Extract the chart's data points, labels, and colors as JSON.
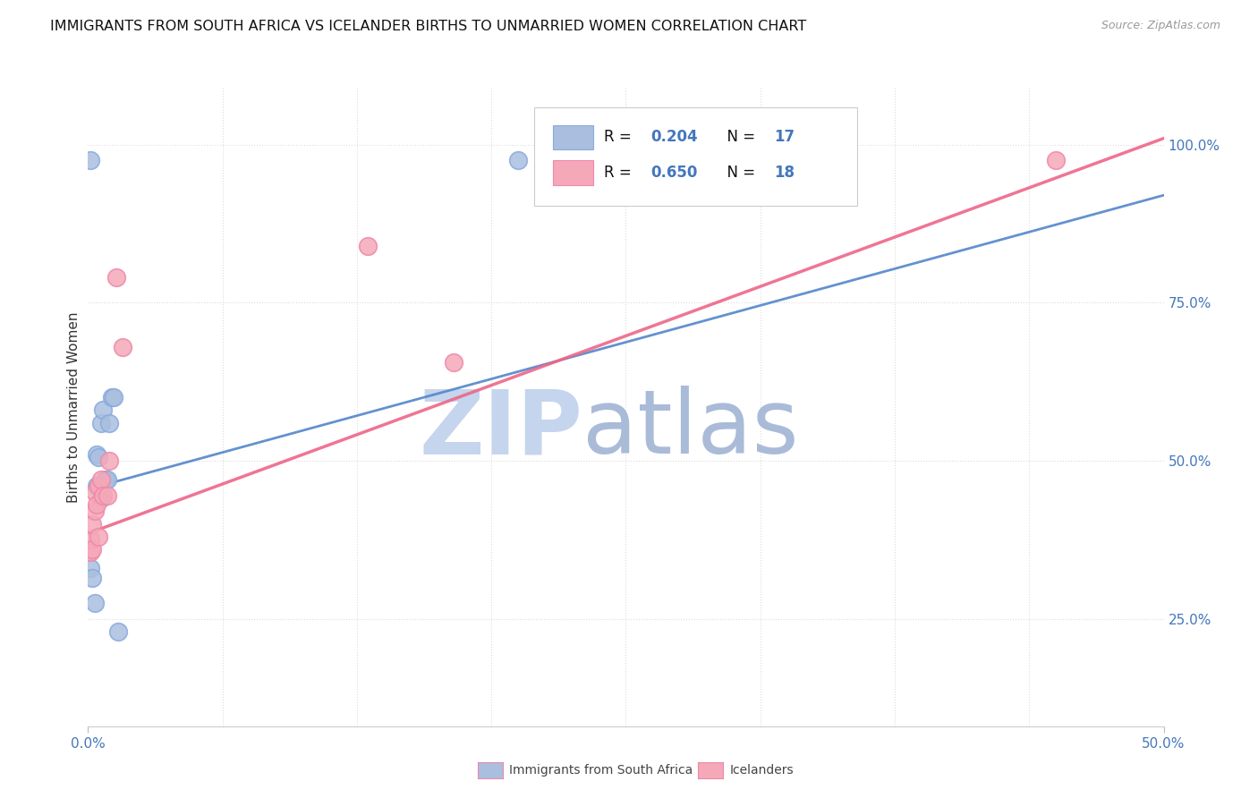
{
  "title": "IMMIGRANTS FROM SOUTH AFRICA VS ICELANDER BIRTHS TO UNMARRIED WOMEN CORRELATION CHART",
  "source": "Source: ZipAtlas.com",
  "ylabel": "Births to Unmarried Women",
  "legend_labels": [
    "Immigrants from South Africa",
    "Icelanders"
  ],
  "blue_fill": "#AABFDF",
  "pink_fill": "#F5A8B8",
  "blue_line": "#5588CC",
  "pink_line": "#EE6688",
  "blue_scatter_edge": "#88AADD",
  "pink_scatter_edge": "#EE88AA",
  "axis_label_color": "#4477BB",
  "grid_color": "#DDDDDD",
  "background_color": "#FFFFFF",
  "watermark_zip_color": "#C5D5EE",
  "watermark_atlas_color": "#AABBD8",
  "xlim": [
    0.0,
    0.5
  ],
  "ylim": [
    0.08,
    1.09
  ],
  "blue_x": [
    0.001,
    0.002,
    0.003,
    0.004,
    0.004,
    0.005,
    0.006,
    0.006,
    0.007,
    0.008,
    0.009,
    0.01,
    0.011,
    0.012,
    0.014,
    0.2,
    0.001
  ],
  "blue_y": [
    0.33,
    0.315,
    0.275,
    0.46,
    0.51,
    0.505,
    0.44,
    0.56,
    0.58,
    0.47,
    0.47,
    0.56,
    0.6,
    0.6,
    0.23,
    0.975,
    0.975
  ],
  "pink_x": [
    0.001,
    0.001,
    0.002,
    0.002,
    0.003,
    0.003,
    0.004,
    0.005,
    0.005,
    0.006,
    0.007,
    0.009,
    0.01,
    0.013,
    0.016,
    0.13,
    0.17,
    0.45
  ],
  "pink_y": [
    0.355,
    0.375,
    0.36,
    0.4,
    0.42,
    0.45,
    0.43,
    0.38,
    0.46,
    0.47,
    0.445,
    0.445,
    0.5,
    0.79,
    0.68,
    0.84,
    0.655,
    0.975
  ],
  "blue_trend_x0": 0.0,
  "blue_trend_y0": 0.455,
  "blue_trend_x1": 0.5,
  "blue_trend_y1": 0.92,
  "pink_trend_x0": 0.0,
  "pink_trend_y0": 0.385,
  "pink_trend_x1": 0.5,
  "pink_trend_y1": 1.01
}
